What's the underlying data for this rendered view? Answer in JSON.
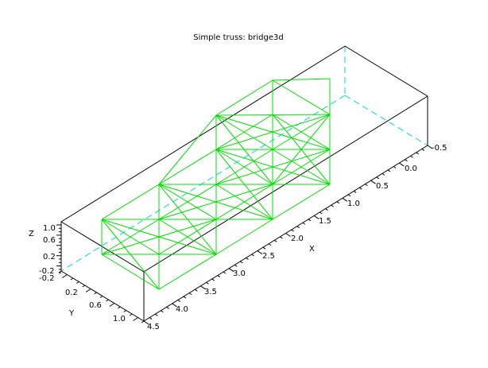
{
  "title": "Simple truss: bridge3d",
  "axes": {
    "x": {
      "label": "X",
      "ticks": [
        "-0.5",
        "0.0",
        "0.5",
        "1.0",
        "1.5",
        "2.0",
        "2.5",
        "3.0",
        "3.5",
        "4.0",
        "4.5"
      ]
    },
    "y": {
      "label": "Y",
      "ticks": [
        "0.2",
        "0.6",
        "1.0"
      ]
    },
    "z": {
      "label": "Z",
      "ticks": [
        "1.0",
        "0.6",
        "0.2",
        "-0.2",
        "-0.2"
      ]
    }
  },
  "colors": {
    "truss": "#00e000",
    "box": "#000000",
    "hidden_edges": "#00d8d8",
    "background": "#ffffff"
  }
}
